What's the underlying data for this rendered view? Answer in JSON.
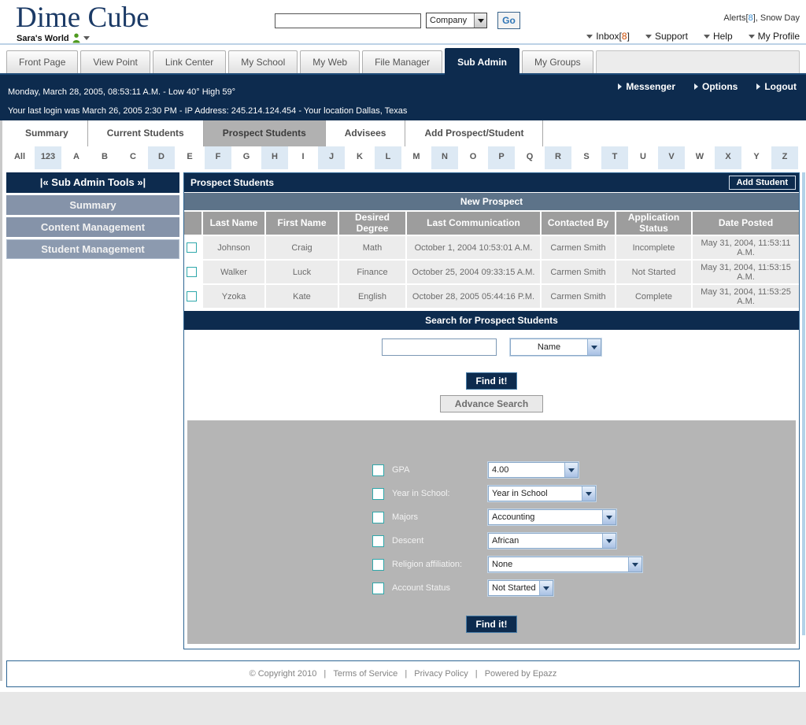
{
  "header": {
    "logo": "Dime Cube",
    "workspace": "Sara's World",
    "search_input_value": "",
    "search_category": "Company",
    "go_label": "Go",
    "alerts_prefix": "Alerts[",
    "alerts_count": "8",
    "alerts_suffix": "], Snow Day",
    "inbox_prefix": "Inbox[",
    "inbox_count": "8",
    "inbox_suffix": "]",
    "menu": [
      "Support",
      "Help",
      "My Profile"
    ]
  },
  "tabs": [
    {
      "label": "Front Page"
    },
    {
      "label": "View Point"
    },
    {
      "label": "Link Center"
    },
    {
      "label": "My School"
    },
    {
      "label": "My Web"
    },
    {
      "label": "File Manager"
    },
    {
      "label": "Sub Admin",
      "active": true
    },
    {
      "label": "My Groups"
    }
  ],
  "statusbar": {
    "menu": [
      "Messenger",
      "Options",
      "Logout"
    ],
    "line1": "Monday, March 28, 2005, 08:53:11 A.M.   -   Low 40° High 59°",
    "line2": "Your last login was March 26, 2005 2:30 PM  -  IP Address: 245.214.124.454   -   Your location Dallas, Texas"
  },
  "subtabs": [
    {
      "label": "Summary"
    },
    {
      "label": "Current Students"
    },
    {
      "label": "Prospect Students",
      "active": true
    },
    {
      "label": "Advisees"
    },
    {
      "label": "Add Prospect/Student"
    }
  ],
  "alphabet": [
    {
      "label": "All"
    },
    {
      "label": "123",
      "blue": true
    },
    {
      "label": "A"
    },
    {
      "label": "B"
    },
    {
      "label": "C"
    },
    {
      "label": "D",
      "blue": true
    },
    {
      "label": "E"
    },
    {
      "label": "F",
      "blue": true
    },
    {
      "label": "G"
    },
    {
      "label": "H",
      "blue": true
    },
    {
      "label": "I"
    },
    {
      "label": "J",
      "blue": true
    },
    {
      "label": "K"
    },
    {
      "label": "L",
      "blue": true
    },
    {
      "label": "M"
    },
    {
      "label": "N",
      "blue": true
    },
    {
      "label": "O"
    },
    {
      "label": "P",
      "blue": true
    },
    {
      "label": "Q"
    },
    {
      "label": "R",
      "blue": true
    },
    {
      "label": "S"
    },
    {
      "label": "T",
      "blue": true
    },
    {
      "label": "U"
    },
    {
      "label": "V",
      "blue": true
    },
    {
      "label": "W"
    },
    {
      "label": "X",
      "blue": true
    },
    {
      "label": "Y"
    },
    {
      "label": "Z",
      "blue": true
    }
  ],
  "sidebar": {
    "header": "|« Sub Admin Tools »|",
    "items": [
      {
        "label": "Summary"
      },
      {
        "label": "Content Management"
      },
      {
        "label": "Student Management",
        "active": true
      }
    ]
  },
  "content": {
    "title": "Prospect Students",
    "add_button": "Add Student",
    "section_label": "New Prospect",
    "table": {
      "columns": [
        "",
        "Last Name",
        "First Name",
        "Desired Degree",
        "Last Communication",
        "Contacted By",
        "Application Status",
        "Date Posted"
      ],
      "rows": [
        {
          "last_name": "Johnson",
          "first_name": "Craig",
          "desired_degree": "Math",
          "last_communication": "October 1, 2004 10:53:01 A.M.",
          "contacted_by": "Carmen Smith",
          "application_status": "Incomplete",
          "date_posted": "May 31, 2004, 11:53:11 A.M."
        },
        {
          "last_name": "Walker",
          "first_name": "Luck",
          "desired_degree": "Finance",
          "last_communication": "October 25, 2004 09:33:15 A.M.",
          "contacted_by": "Carmen Smith",
          "application_status": "Not Started",
          "date_posted": "May 31, 2004, 11:53:15 A.M."
        },
        {
          "last_name": "Yzoka",
          "first_name": "Kate",
          "desired_degree": "English",
          "last_communication": "October 28, 2005 05:44:16 P.M.",
          "contacted_by": "Carmen Smith",
          "application_status": "Complete",
          "date_posted": "May 31, 2004, 11:53:25 A.M."
        }
      ]
    },
    "search": {
      "title": "Search for  Prospect Students",
      "input_value": "",
      "select_value": "Name",
      "find_button": "Find it!",
      "advance_button": "Advance Search"
    },
    "advanced": {
      "rows": [
        {
          "label": "GPA",
          "value": "4.00",
          "width": 115
        },
        {
          "label": "Year in School:",
          "value": "Year in School",
          "width": 137
        },
        {
          "label": "Majors",
          "value": "Accounting",
          "width": 163
        },
        {
          "label": "Descent",
          "value": "African",
          "width": 163
        },
        {
          "label": "Religion affiliation:",
          "value": "None",
          "width": 196
        },
        {
          "label": "Account Status",
          "value": "Not Started",
          "width": 83
        }
      ],
      "find_button": "Find it!"
    }
  },
  "footer": {
    "copyright": "© Copyright 2010",
    "separator": "|",
    "link1": "Terms of Service",
    "link2": "Privacy Policy",
    "powered": "Powered by Epazz"
  }
}
